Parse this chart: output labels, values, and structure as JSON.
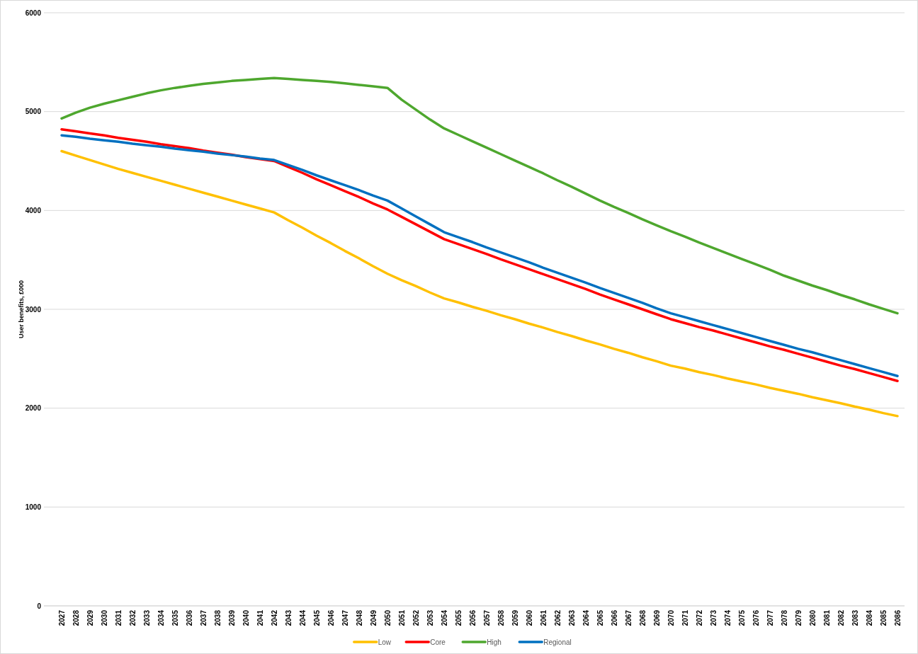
{
  "chart_data": {
    "type": "line",
    "ylabel": "User benefits, £000",
    "categories": [
      "2027",
      "2028",
      "2029",
      "2030",
      "2031",
      "2032",
      "2033",
      "2034",
      "2035",
      "2036",
      "2037",
      "2038",
      "2039",
      "2040",
      "2041",
      "2042",
      "2043",
      "2044",
      "2045",
      "2046",
      "2047",
      "2048",
      "2049",
      "2050",
      "2051",
      "2052",
      "2053",
      "2054",
      "2055",
      "2056",
      "2057",
      "2058",
      "2059",
      "2060",
      "2061",
      "2062",
      "2063",
      "2064",
      "2065",
      "2066",
      "2067",
      "2068",
      "2069",
      "2070",
      "2071",
      "2072",
      "2073",
      "2074",
      "2075",
      "2076",
      "2077",
      "2078",
      "2079",
      "2080",
      "2081",
      "2082",
      "2083",
      "2084",
      "2085",
      "2086"
    ],
    "series": [
      {
        "name": "Low",
        "color": "#ffc000",
        "values": [
          4600,
          4555,
          4510,
          4465,
          4420,
          4380,
          4340,
          4300,
          4260,
          4220,
          4180,
          4140,
          4100,
          4060,
          4020,
          3980,
          3900,
          3825,
          3745,
          3670,
          3590,
          3515,
          3435,
          3360,
          3295,
          3235,
          3170,
          3110,
          3070,
          3025,
          2985,
          2940,
          2900,
          2855,
          2815,
          2770,
          2730,
          2685,
          2645,
          2600,
          2560,
          2515,
          2475,
          2430,
          2400,
          2365,
          2335,
          2300,
          2270,
          2240,
          2205,
          2175,
          2145,
          2110,
          2080,
          2050,
          2015,
          1985,
          1950,
          1920
        ]
      },
      {
        "name": "Core",
        "color": "#ff0000",
        "values": [
          4820,
          4800,
          4780,
          4760,
          4735,
          4715,
          4695,
          4670,
          4650,
          4630,
          4605,
          4585,
          4565,
          4540,
          4520,
          4500,
          4440,
          4380,
          4315,
          4255,
          4195,
          4135,
          4070,
          4010,
          3935,
          3860,
          3785,
          3710,
          3660,
          3610,
          3560,
          3505,
          3455,
          3405,
          3355,
          3305,
          3255,
          3205,
          3150,
          3100,
          3050,
          3000,
          2950,
          2900,
          2860,
          2820,
          2785,
          2745,
          2705,
          2665,
          2625,
          2590,
          2550,
          2510,
          2470,
          2430,
          2395,
          2355,
          2315,
          2275
        ]
      },
      {
        "name": "High",
        "color": "#4ea72e",
        "values": [
          4930,
          4990,
          5040,
          5080,
          5115,
          5150,
          5185,
          5215,
          5240,
          5260,
          5280,
          5295,
          5310,
          5320,
          5330,
          5340,
          5330,
          5320,
          5310,
          5300,
          5285,
          5270,
          5255,
          5240,
          5120,
          5020,
          4920,
          4830,
          4765,
          4700,
          4635,
          4570,
          4505,
          4440,
          4375,
          4305,
          4240,
          4170,
          4100,
          4035,
          3975,
          3910,
          3850,
          3790,
          3735,
          3675,
          3620,
          3565,
          3510,
          3455,
          3400,
          3340,
          3290,
          3240,
          3195,
          3145,
          3100,
          3050,
          3005,
          2960
        ]
      },
      {
        "name": "Regional",
        "color": "#0070c0",
        "values": [
          4760,
          4745,
          4725,
          4710,
          4695,
          4675,
          4660,
          4645,
          4625,
          4610,
          4595,
          4575,
          4560,
          4545,
          4525,
          4510,
          4460,
          4410,
          4355,
          4305,
          4255,
          4205,
          4150,
          4100,
          4020,
          3940,
          3860,
          3780,
          3730,
          3680,
          3625,
          3575,
          3525,
          3475,
          3420,
          3370,
          3320,
          3270,
          3215,
          3165,
          3115,
          3065,
          3010,
          2960,
          2920,
          2880,
          2840,
          2800,
          2760,
          2720,
          2680,
          2640,
          2600,
          2565,
          2525,
          2485,
          2445,
          2405,
          2365,
          2325
        ]
      }
    ],
    "ylim": [
      0,
      6000
    ],
    "yticks": [
      0,
      1000,
      2000,
      3000,
      4000,
      5000,
      6000
    ],
    "grid": "y",
    "legend": "bottom",
    "marker": "none",
    "line_style": "solid"
  }
}
